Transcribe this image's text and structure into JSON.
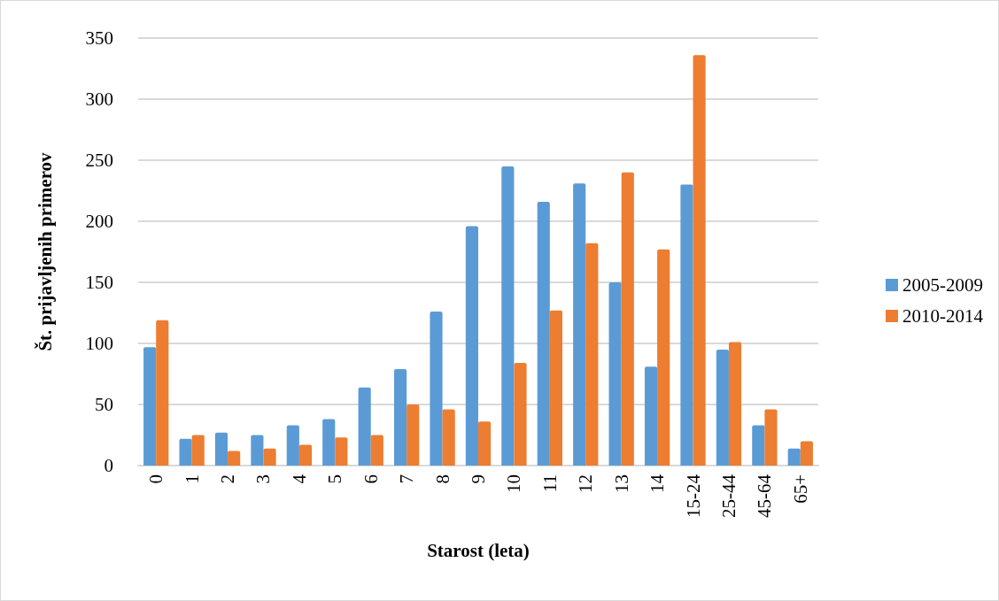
{
  "chart_data": {
    "type": "bar",
    "xlabel": "Starost (leta)",
    "ylabel": "Št. prijavljenih primerov",
    "categories": [
      "0",
      "1",
      "2",
      "3",
      "4",
      "5",
      "6",
      "7",
      "8",
      "9",
      "10",
      "11",
      "12",
      "13",
      "14",
      "15-24",
      "25-44",
      "45-64",
      "65+"
    ],
    "series": [
      {
        "name": "2005-2009",
        "color": "#5b9bd5",
        "values": [
          97,
          22,
          27,
          25,
          33,
          38,
          64,
          79,
          126,
          196,
          245,
          216,
          231,
          150,
          81,
          230,
          95,
          33,
          14
        ]
      },
      {
        "name": "2010-2014",
        "color": "#ed7d31",
        "values": [
          119,
          25,
          12,
          14,
          17,
          23,
          25,
          50,
          46,
          36,
          84,
          127,
          182,
          240,
          177,
          336,
          101,
          46,
          20
        ]
      }
    ],
    "ylim": [
      0,
      350
    ],
    "yticks": [
      0,
      50,
      100,
      150,
      200,
      250,
      300,
      350
    ],
    "grid": "y",
    "legend": "right"
  }
}
